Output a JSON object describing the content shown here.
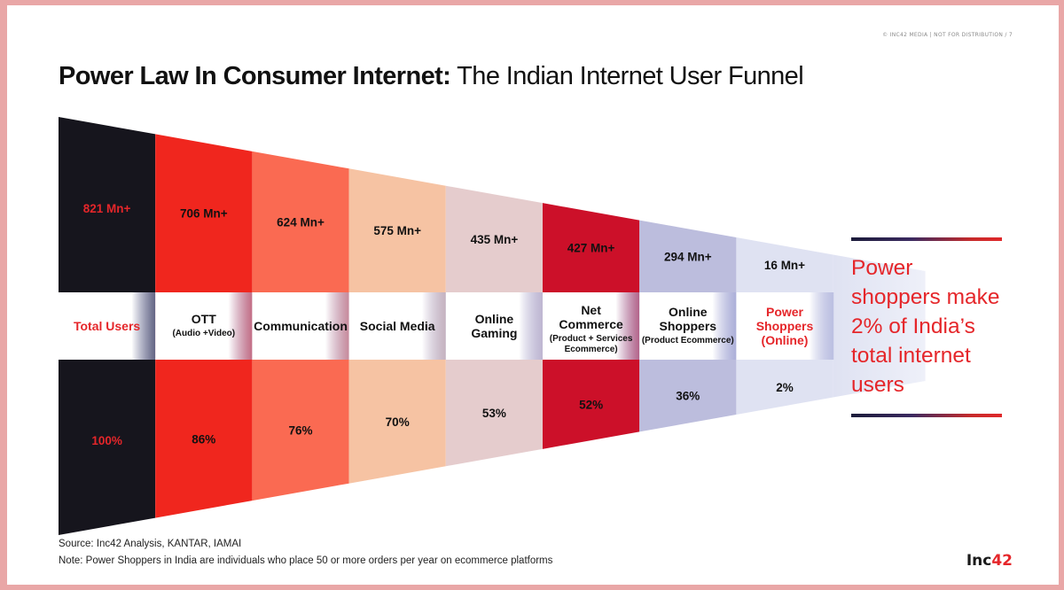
{
  "header": {
    "top_note": "© INC42 MEDIA | NOT FOR DISTRIBUTION / 7",
    "title_bold": "Power Law In Consumer Internet:",
    "title_light": " The Indian Internet User Funnel"
  },
  "chart_data": {
    "type": "funnel",
    "stages": [
      {
        "label": [
          "Total Users"
        ],
        "sublabel": "",
        "users": "821 Mn+",
        "share": "100%",
        "users_mn": 821,
        "share_pct": 100,
        "color": "#16151d",
        "label_color": "#e5262a",
        "value_color": "#e5262a"
      },
      {
        "label": [
          "OTT"
        ],
        "sublabel": "(Audio +Video)",
        "users": "706 Mn+",
        "share": "86%",
        "users_mn": 706,
        "share_pct": 86,
        "color": "#f0261e",
        "label_color": "#111111",
        "value_color": "#111111"
      },
      {
        "label": [
          "Communication"
        ],
        "sublabel": "",
        "users": "624 Mn+",
        "share": "76%",
        "users_mn": 624,
        "share_pct": 76,
        "color": "#fa6a52",
        "label_color": "#111111",
        "value_color": "#111111"
      },
      {
        "label": [
          "Social Media"
        ],
        "sublabel": "",
        "users": "575 Mn+",
        "share": "70%",
        "users_mn": 575,
        "share_pct": 70,
        "color": "#f6c3a3",
        "label_color": "#111111",
        "value_color": "#111111"
      },
      {
        "label": [
          "Online",
          "Gaming"
        ],
        "sublabel": "",
        "users": "435 Mn+",
        "share": "53%",
        "users_mn": 435,
        "share_pct": 53,
        "color": "#e5cccd",
        "label_color": "#111111",
        "value_color": "#111111"
      },
      {
        "label": [
          "Net",
          "Commerce"
        ],
        "sublabel": "(Product + Services Ecommerce)",
        "users": "427 Mn+",
        "share": "52%",
        "users_mn": 427,
        "share_pct": 52,
        "color": "#cc1029",
        "label_color": "#111111",
        "value_color": "#111111"
      },
      {
        "label": [
          "Online",
          "Shoppers"
        ],
        "sublabel": "(Product Ecommerce)",
        "users": "294 Mn+",
        "share": "36%",
        "users_mn": 294,
        "share_pct": 36,
        "color": "#bcbddd",
        "label_color": "#111111",
        "value_color": "#111111"
      },
      {
        "label": [
          "Power",
          "Shoppers",
          "(Online)"
        ],
        "sublabel": "",
        "users": "16 Mn+",
        "share": "2%",
        "users_mn": 16,
        "share_pct": 2,
        "color": "#dfe2f2",
        "label_color": "#e5262a",
        "value_color": "#111111"
      }
    ]
  },
  "callout": {
    "text": "Power shoppers make 2% of India’s total internet users"
  },
  "footer": {
    "source": "Source: Inc42 Analysis, KANTAR, IAMAI",
    "note": "Note: Power Shoppers in India are individuals who place 50 or more orders per year on ecommerce platforms",
    "logo_main": "Inc",
    "logo_accent": "42"
  }
}
